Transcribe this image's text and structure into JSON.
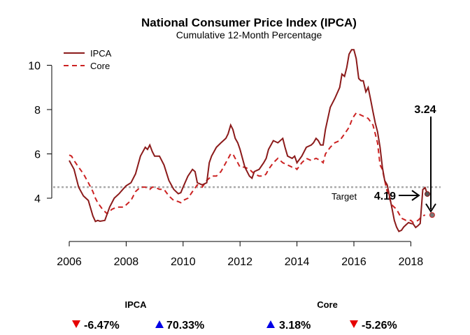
{
  "chart_data": {
    "type": "line",
    "title": "National Consumer Price Index (IPCA)",
    "subtitle": "Cumulative 12-Month Percentage",
    "xlim": [
      2006,
      2018.75
    ],
    "ylim": [
      2.6,
      10.7
    ],
    "x_ticks": [
      2006,
      2008,
      2010,
      2012,
      2014,
      2016,
      2018
    ],
    "y_ticks": [
      4,
      6,
      8,
      10
    ],
    "legend_position": "top-left",
    "target": {
      "label": "Target",
      "value": 4.5
    },
    "series": [
      {
        "name": "IPCA",
        "color": "#8b1a1a",
        "style": "solid",
        "points": [
          [
            2006.0,
            5.7
          ],
          [
            2006.17,
            5.3
          ],
          [
            2006.33,
            4.5
          ],
          [
            2006.5,
            4.1
          ],
          [
            2006.67,
            3.9
          ],
          [
            2006.83,
            3.2
          ],
          [
            2006.92,
            2.95
          ],
          [
            2007.0,
            3.0
          ],
          [
            2007.08,
            2.96
          ],
          [
            2007.25,
            3.0
          ],
          [
            2007.42,
            3.6
          ],
          [
            2007.58,
            4.0
          ],
          [
            2007.75,
            4.2
          ],
          [
            2007.92,
            4.45
          ],
          [
            2008.0,
            4.56
          ],
          [
            2008.17,
            4.7
          ],
          [
            2008.33,
            5.1
          ],
          [
            2008.5,
            5.9
          ],
          [
            2008.67,
            6.3
          ],
          [
            2008.75,
            6.2
          ],
          [
            2008.83,
            6.4
          ],
          [
            2008.92,
            6.1
          ],
          [
            2009.0,
            5.9
          ],
          [
            2009.17,
            5.9
          ],
          [
            2009.33,
            5.5
          ],
          [
            2009.5,
            4.8
          ],
          [
            2009.67,
            4.4
          ],
          [
            2009.83,
            4.2
          ],
          [
            2009.92,
            4.25
          ],
          [
            2010.0,
            4.5
          ],
          [
            2010.17,
            5.0
          ],
          [
            2010.33,
            5.3
          ],
          [
            2010.42,
            5.2
          ],
          [
            2010.5,
            4.7
          ],
          [
            2010.67,
            4.6
          ],
          [
            2010.83,
            4.7
          ],
          [
            2010.92,
            5.6
          ],
          [
            2011.0,
            5.9
          ],
          [
            2011.17,
            6.3
          ],
          [
            2011.33,
            6.5
          ],
          [
            2011.5,
            6.7
          ],
          [
            2011.58,
            6.9
          ],
          [
            2011.67,
            7.3
          ],
          [
            2011.75,
            7.1
          ],
          [
            2011.83,
            6.7
          ],
          [
            2011.92,
            6.5
          ],
          [
            2012.0,
            6.2
          ],
          [
            2012.17,
            5.4
          ],
          [
            2012.33,
            5.0
          ],
          [
            2012.42,
            4.9
          ],
          [
            2012.5,
            5.2
          ],
          [
            2012.67,
            5.3
          ],
          [
            2012.83,
            5.6
          ],
          [
            2012.92,
            5.8
          ],
          [
            2013.0,
            6.2
          ],
          [
            2013.17,
            6.6
          ],
          [
            2013.33,
            6.5
          ],
          [
            2013.5,
            6.7
          ],
          [
            2013.58,
            6.3
          ],
          [
            2013.67,
            5.9
          ],
          [
            2013.83,
            5.8
          ],
          [
            2013.92,
            5.9
          ],
          [
            2014.0,
            5.6
          ],
          [
            2014.17,
            5.9
          ],
          [
            2014.33,
            6.3
          ],
          [
            2014.5,
            6.4
          ],
          [
            2014.58,
            6.5
          ],
          [
            2014.67,
            6.7
          ],
          [
            2014.75,
            6.6
          ],
          [
            2014.83,
            6.4
          ],
          [
            2014.92,
            6.4
          ],
          [
            2015.0,
            7.1
          ],
          [
            2015.17,
            8.1
          ],
          [
            2015.33,
            8.5
          ],
          [
            2015.5,
            9.0
          ],
          [
            2015.58,
            9.6
          ],
          [
            2015.67,
            9.5
          ],
          [
            2015.75,
            9.9
          ],
          [
            2015.83,
            10.5
          ],
          [
            2015.92,
            10.7
          ],
          [
            2016.0,
            10.7
          ],
          [
            2016.08,
            10.3
          ],
          [
            2016.17,
            9.4
          ],
          [
            2016.25,
            9.3
          ],
          [
            2016.33,
            9.3
          ],
          [
            2016.42,
            8.8
          ],
          [
            2016.5,
            9.0
          ],
          [
            2016.58,
            8.5
          ],
          [
            2016.67,
            7.9
          ],
          [
            2016.75,
            7.4
          ],
          [
            2016.83,
            7.0
          ],
          [
            2016.92,
            6.3
          ],
          [
            2017.0,
            5.4
          ],
          [
            2017.08,
            4.8
          ],
          [
            2017.17,
            4.6
          ],
          [
            2017.25,
            4.1
          ],
          [
            2017.33,
            3.6
          ],
          [
            2017.42,
            3.0
          ],
          [
            2017.5,
            2.7
          ],
          [
            2017.58,
            2.5
          ],
          [
            2017.67,
            2.55
          ],
          [
            2017.75,
            2.7
          ],
          [
            2017.83,
            2.8
          ],
          [
            2017.92,
            2.9
          ],
          [
            2018.0,
            2.86
          ],
          [
            2018.08,
            2.84
          ],
          [
            2018.17,
            2.68
          ],
          [
            2018.25,
            2.76
          ],
          [
            2018.33,
            2.86
          ],
          [
            2018.42,
            4.39
          ],
          [
            2018.5,
            4.48
          ],
          [
            2018.58,
            4.19
          ]
        ]
      },
      {
        "name": "Core",
        "color": "#cc2222",
        "style": "dashed",
        "points": [
          [
            2006.0,
            5.95
          ],
          [
            2006.08,
            5.9
          ],
          [
            2006.17,
            5.7
          ],
          [
            2006.33,
            5.4
          ],
          [
            2006.5,
            5.1
          ],
          [
            2006.67,
            4.7
          ],
          [
            2006.83,
            4.3
          ],
          [
            2006.92,
            4.0
          ],
          [
            2007.0,
            3.8
          ],
          [
            2007.17,
            3.5
          ],
          [
            2007.33,
            3.3
          ],
          [
            2007.5,
            3.5
          ],
          [
            2007.67,
            3.6
          ],
          [
            2007.83,
            3.6
          ],
          [
            2007.92,
            3.6
          ],
          [
            2008.0,
            3.7
          ],
          [
            2008.17,
            3.9
          ],
          [
            2008.33,
            4.3
          ],
          [
            2008.5,
            4.5
          ],
          [
            2008.67,
            4.5
          ],
          [
            2008.83,
            4.4
          ],
          [
            2008.92,
            4.5
          ],
          [
            2009.0,
            4.5
          ],
          [
            2009.17,
            4.4
          ],
          [
            2009.33,
            4.4
          ],
          [
            2009.5,
            4.1
          ],
          [
            2009.67,
            3.9
          ],
          [
            2009.83,
            3.85
          ],
          [
            2009.92,
            3.8
          ],
          [
            2010.0,
            3.9
          ],
          [
            2010.17,
            4.0
          ],
          [
            2010.33,
            4.3
          ],
          [
            2010.5,
            4.6
          ],
          [
            2010.67,
            4.5
          ],
          [
            2010.83,
            4.8
          ],
          [
            2010.92,
            4.9
          ],
          [
            2011.0,
            5.0
          ],
          [
            2011.17,
            5.0
          ],
          [
            2011.33,
            5.2
          ],
          [
            2011.5,
            5.6
          ],
          [
            2011.67,
            6.0
          ],
          [
            2011.75,
            6.0
          ],
          [
            2011.83,
            5.8
          ],
          [
            2011.92,
            5.6
          ],
          [
            2012.0,
            5.4
          ],
          [
            2012.17,
            5.4
          ],
          [
            2012.33,
            5.3
          ],
          [
            2012.5,
            5.1
          ],
          [
            2012.67,
            5.0
          ],
          [
            2012.83,
            5.0
          ],
          [
            2012.92,
            5.1
          ],
          [
            2013.0,
            5.3
          ],
          [
            2013.17,
            5.6
          ],
          [
            2013.33,
            5.8
          ],
          [
            2013.5,
            5.6
          ],
          [
            2013.67,
            5.5
          ],
          [
            2013.83,
            5.4
          ],
          [
            2013.92,
            5.4
          ],
          [
            2014.0,
            5.3
          ],
          [
            2014.17,
            5.6
          ],
          [
            2014.33,
            5.8
          ],
          [
            2014.5,
            5.7
          ],
          [
            2014.67,
            5.8
          ],
          [
            2014.83,
            5.7
          ],
          [
            2014.92,
            5.6
          ],
          [
            2015.0,
            6.0
          ],
          [
            2015.17,
            6.3
          ],
          [
            2015.33,
            6.5
          ],
          [
            2015.5,
            6.6
          ],
          [
            2015.67,
            6.9
          ],
          [
            2015.83,
            7.2
          ],
          [
            2015.92,
            7.5
          ],
          [
            2016.0,
            7.7
          ],
          [
            2016.08,
            7.85
          ],
          [
            2016.17,
            7.8
          ],
          [
            2016.33,
            7.7
          ],
          [
            2016.5,
            7.6
          ],
          [
            2016.67,
            7.3
          ],
          [
            2016.83,
            6.5
          ],
          [
            2016.92,
            5.5
          ],
          [
            2017.0,
            5.3
          ],
          [
            2017.08,
            4.8
          ],
          [
            2017.17,
            4.3
          ],
          [
            2017.25,
            4.0
          ],
          [
            2017.33,
            3.7
          ],
          [
            2017.5,
            3.5
          ],
          [
            2017.67,
            3.1
          ],
          [
            2017.83,
            3.0
          ],
          [
            2017.92,
            3.0
          ],
          [
            2018.0,
            3.0
          ],
          [
            2018.08,
            2.9
          ],
          [
            2018.17,
            2.95
          ],
          [
            2018.25,
            3.0
          ],
          [
            2018.33,
            3.1
          ],
          [
            2018.42,
            3.2
          ],
          [
            2018.5,
            3.24
          ]
        ]
      }
    ],
    "annotations": [
      {
        "label": "4.19",
        "series": "IPCA",
        "x": 2018.58,
        "y": 4.19
      },
      {
        "label": "3.24",
        "series": "Core",
        "x": 2018.75,
        "y": 3.24
      }
    ]
  },
  "stats": {
    "ipca": {
      "title": "IPCA",
      "items": [
        {
          "direction": "down",
          "color": "#e60000",
          "value": "-6.47%"
        },
        {
          "direction": "up",
          "color": "#0000e6",
          "value": "70.33%"
        }
      ]
    },
    "core": {
      "title": "Core",
      "items": [
        {
          "direction": "up",
          "color": "#0000e6",
          "value": "3.18%"
        },
        {
          "direction": "down",
          "color": "#e60000",
          "value": "-5.26%"
        }
      ]
    }
  }
}
